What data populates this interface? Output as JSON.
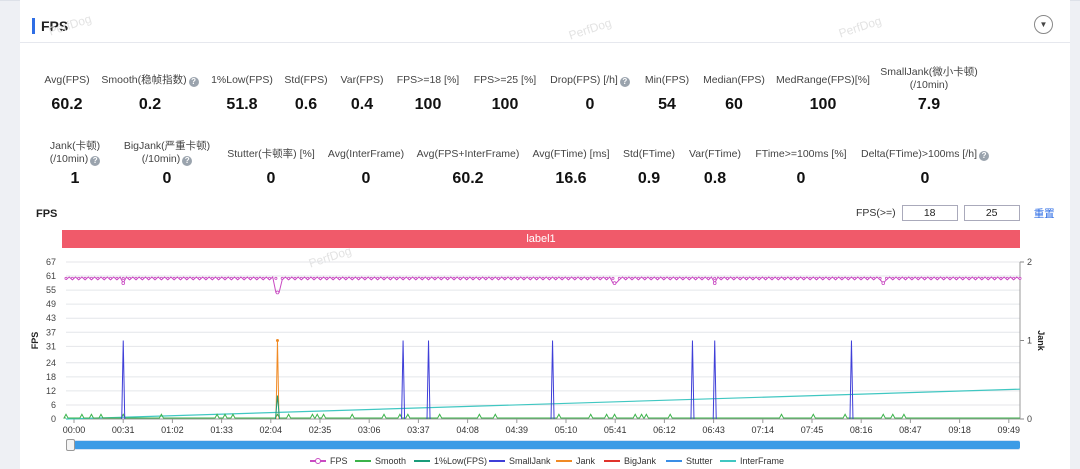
{
  "panel": {
    "title": "FPS",
    "collapse_icon": "chevron-down-icon"
  },
  "watermark": "PerfDog",
  "metrics_row1": [
    {
      "label": "Avg(FPS)",
      "value": "60.2"
    },
    {
      "label": "Smooth(稳帧指数)",
      "value": "0.2",
      "help": true
    },
    {
      "label": "1%Low(FPS)",
      "value": "51.8"
    },
    {
      "label": "Std(FPS)",
      "value": "0.6"
    },
    {
      "label": "Var(FPS)",
      "value": "0.4"
    },
    {
      "label": "FPS>=18 [%]",
      "value": "100"
    },
    {
      "label": "FPS>=25 [%]",
      "value": "100"
    },
    {
      "label": "Drop(FPS) [/h]",
      "value": "0",
      "help": true
    },
    {
      "label": "Min(FPS)",
      "value": "54"
    },
    {
      "label": "Median(FPS)",
      "value": "60"
    },
    {
      "label": "MedRange(FPS)[%]",
      "value": "100"
    },
    {
      "label": "SmallJank(微小卡顿)",
      "label2": "(/10min)",
      "value": "7.9"
    }
  ],
  "metrics_row2": [
    {
      "label": "Jank(卡顿)",
      "label2": "(/10min)",
      "value": "1",
      "help": true
    },
    {
      "label": "BigJank(严重卡顿)",
      "label2": "(/10min)",
      "value": "0",
      "help": true
    },
    {
      "label": "Stutter(卡顿率) [%]",
      "value": "0"
    },
    {
      "label": "Avg(InterFrame)",
      "value": "0"
    },
    {
      "label": "Avg(FPS+InterFrame)",
      "value": "60.2"
    },
    {
      "label": "Avg(FTime) [ms]",
      "value": "16.6"
    },
    {
      "label": "Std(FTime)",
      "value": "0.9"
    },
    {
      "label": "Var(FTime)",
      "value": "0.8"
    },
    {
      "label": "FTime>=100ms [%]",
      "value": "0"
    },
    {
      "label": "Delta(FTime)>100ms [/h]",
      "value": "0",
      "help": true
    }
  ],
  "chart_header": {
    "title": "FPS",
    "threshold_label": "FPS(>=)",
    "threshold_1": "18",
    "threshold_2": "25",
    "reset_label": "重置"
  },
  "label_band": "label1",
  "chart_data": {
    "type": "line",
    "ylabel": "FPS",
    "y2label": "Jank",
    "yticks": [
      "0",
      "6",
      "12",
      "18",
      "24",
      "31",
      "37",
      "43",
      "49",
      "55",
      "61",
      "67"
    ],
    "y2ticks": [
      "0",
      "1",
      "2"
    ],
    "ylim": [
      0,
      67
    ],
    "y2lim": [
      0,
      2
    ],
    "x_ticks": [
      "00:00",
      "00:31",
      "01:02",
      "01:33",
      "02:04",
      "02:35",
      "03:06",
      "03:37",
      "04:08",
      "04:39",
      "05:10",
      "05:41",
      "06:12",
      "06:43",
      "07:14",
      "07:45",
      "08:16",
      "08:47",
      "09:18",
      "09:49"
    ],
    "duration_s": 600,
    "series": [
      {
        "name": "FPS",
        "color": "#c94ac2",
        "baseline": 60,
        "dips": [
          {
            "t": 133,
            "v": 54
          },
          {
            "t": 36,
            "v": 58
          },
          {
            "t": 345,
            "v": 58
          },
          {
            "t": 514,
            "v": 58
          },
          {
            "t": 408,
            "v": 58
          }
        ]
      },
      {
        "name": "Smooth",
        "color": "#3bb34a",
        "spikes_t": [
          0,
          10,
          16,
          22,
          36,
          60,
          95,
          100,
          105,
          133,
          140,
          155,
          158,
          162,
          180,
          200,
          210,
          215,
          235,
          260,
          270,
          310,
          330,
          340,
          345,
          358,
          362,
          365,
          380,
          450,
          470,
          490,
          514,
          520,
          527
        ]
      },
      {
        "name": "1%Low(FPS)",
        "color": "#1a9c7a"
      },
      {
        "name": "SmallJank",
        "color": "#3f3fd8",
        "events": [
          {
            "t": 36,
            "v": 1
          },
          {
            "t": 212,
            "v": 1
          },
          {
            "t": 228,
            "v": 1
          },
          {
            "t": 306,
            "v": 1
          },
          {
            "t": 394,
            "v": 1
          },
          {
            "t": 408,
            "v": 1
          },
          {
            "t": 494,
            "v": 1
          }
        ]
      },
      {
        "name": "Jank",
        "color": "#f08a24",
        "events": [
          {
            "t": 133,
            "v": 1
          }
        ]
      },
      {
        "name": "BigJank",
        "color": "#e0332b",
        "events": []
      },
      {
        "name": "Stutter",
        "color": "#3a8ee6",
        "events": []
      },
      {
        "name": "InterFrame",
        "color": "#40c7c2",
        "trend": [
          0,
          0.38
        ]
      }
    ]
  },
  "legend": [
    "FPS",
    "Smooth",
    "1%Low(FPS)",
    "SmallJank",
    "Jank",
    "BigJank",
    "Stutter",
    "InterFrame"
  ],
  "colors": {
    "accent": "#2f6ee5",
    "label_band": "#f05a6a",
    "scrollbar": "#3d9be6"
  }
}
